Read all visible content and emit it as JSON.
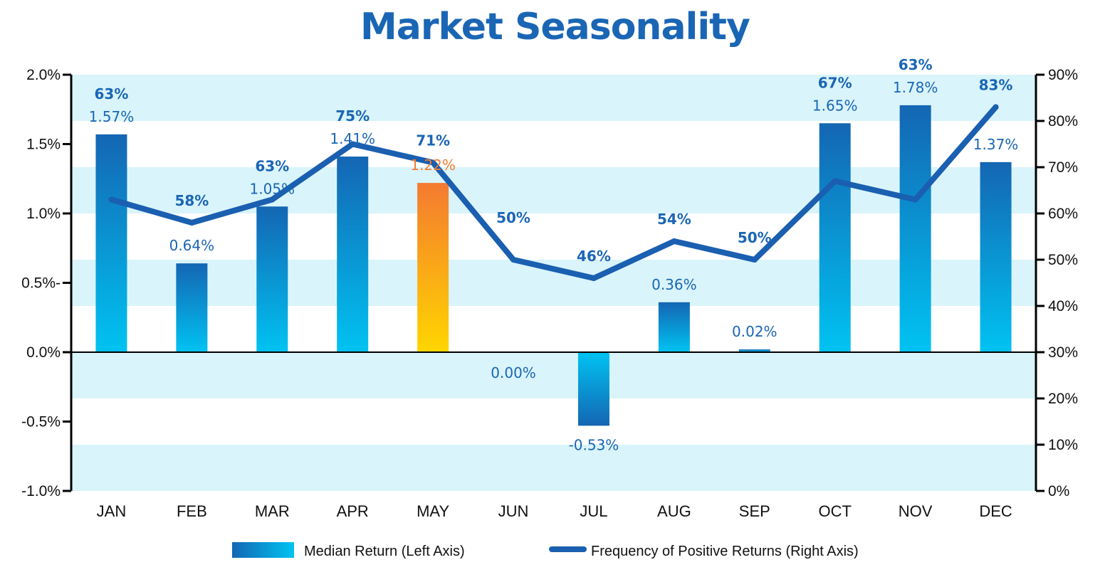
{
  "chart_data": {
    "type": "bar",
    "title": "Market Seasonality",
    "categories": [
      "JAN",
      "FEB",
      "MAR",
      "APR",
      "MAY",
      "JUN",
      "JUL",
      "AUG",
      "SEP",
      "OCT",
      "NOV",
      "DEC"
    ],
    "series": [
      {
        "name": "Median Return (Left Axis)",
        "type": "bar",
        "axis": "left",
        "values": [
          1.57,
          0.64,
          1.05,
          1.41,
          1.22,
          0.0,
          -0.53,
          0.36,
          0.02,
          1.65,
          1.78,
          1.37
        ],
        "labels": [
          "1.57%",
          "0.64%",
          "1.05%",
          "1.41%",
          "1.22%",
          "0.00%",
          "-0.53%",
          "0.36%",
          "0.02%",
          "1.65%",
          "1.78%",
          "1.37%"
        ]
      },
      {
        "name": "Frequency of Positive Returns (Right Axis)",
        "type": "line",
        "axis": "right",
        "values": [
          63,
          58,
          63,
          75,
          71,
          50,
          46,
          54,
          50,
          67,
          63,
          83
        ],
        "labels": [
          "63%",
          "58%",
          "63%",
          "75%",
          "71%",
          "50%",
          "46%",
          "54%",
          "50%",
          "67%",
          "63%",
          "83%"
        ]
      }
    ],
    "highlight_category": "MAY",
    "y_left": {
      "lim": [
        -1.0,
        2.0
      ],
      "ticks": [
        -1.0,
        -0.5,
        0.0,
        0.5,
        1.0,
        1.5,
        2.0
      ],
      "tick_labels": [
        "-1.0%",
        "-0.5%",
        "0.0%",
        "0.5%-",
        "1.0%",
        "1.5%",
        "2.0%"
      ]
    },
    "y_right": {
      "lim": [
        0,
        90
      ],
      "ticks": [
        0,
        10,
        20,
        30,
        40,
        50,
        60,
        70,
        80,
        90
      ],
      "tick_labels": [
        "0%",
        "10%",
        "20%",
        "30%",
        "40%",
        "50%",
        "60%",
        "70%",
        "80%",
        "90%"
      ]
    },
    "legend": {
      "position": "bottom",
      "entries": [
        "Median Return (Left Axis)",
        "Frequency of Positive Returns (Right Axis)"
      ]
    },
    "colors": {
      "bar_top": "#1466b3",
      "bar_bottom": "#00c3f2",
      "highlight_top": "#f47a30",
      "highlight_bottom": "#ffd600",
      "line": "#1a5fb0",
      "band": "#d9f4fb",
      "value_label": "#1a66b5",
      "highlight_label": "#f47a30"
    }
  }
}
